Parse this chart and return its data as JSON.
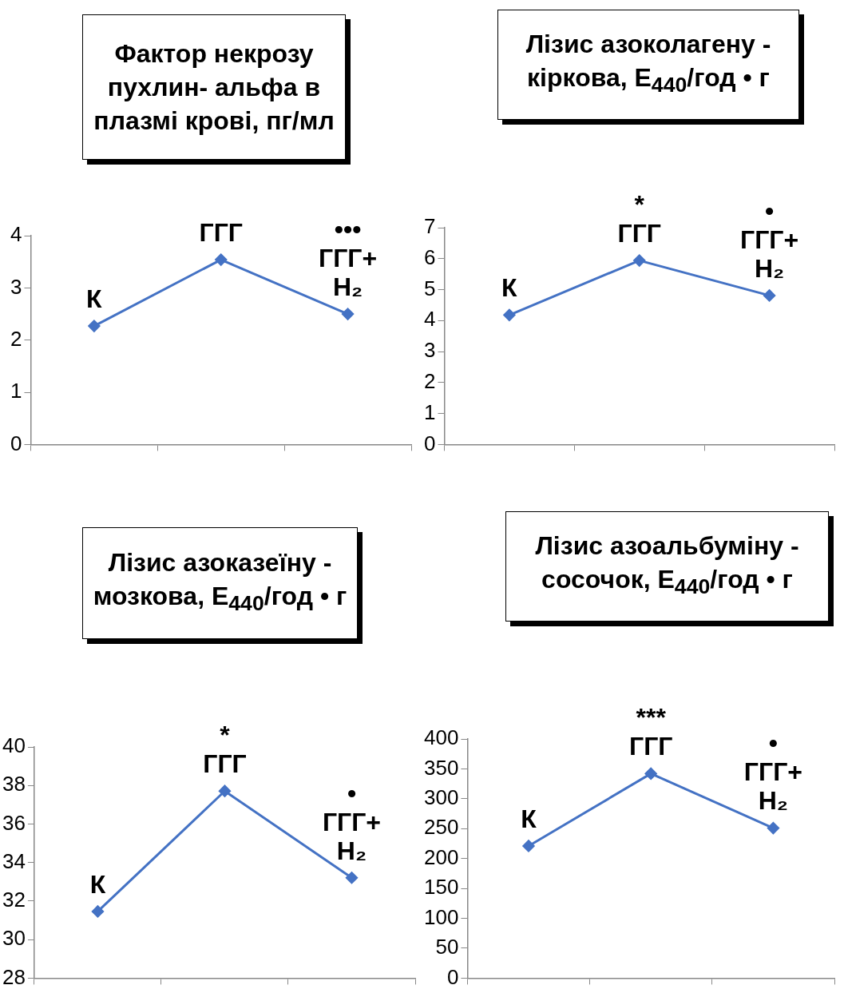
{
  "chart_data": [
    {
      "type": "line",
      "title": "Фактор некрозу пухлин- альфа в плазмі крові, пг/мл",
      "categories": [
        null,
        null,
        null
      ],
      "values": [
        2.27,
        3.54,
        2.5
      ],
      "color": "#4472c4",
      "marker": "diamond",
      "ylim": [
        0,
        4
      ],
      "yticks": [
        0,
        1,
        2,
        3,
        4
      ],
      "annotations": [
        {
          "text": "К",
          "y": 2.27
        },
        {
          "text": "ГГГ",
          "y": 3.54
        },
        {
          "text": "ГГГ+\nH₂",
          "y": 2.5
        },
        {
          "text": "•••",
          "y": 2.5
        }
      ]
    },
    {
      "type": "line",
      "title": "Лізис азоколагену - кіркова, E$_{440}$/год • г",
      "categories": [
        null,
        null,
        null
      ],
      "values": [
        4.18,
        5.94,
        4.81
      ],
      "color": "#4472c4",
      "marker": "diamond",
      "ylim": [
        0,
        7
      ],
      "yticks": [
        0,
        1,
        2,
        3,
        4,
        5,
        6,
        7
      ],
      "annotations": [
        {
          "text": "К",
          "y": 4.18
        },
        {
          "text": "ГГГ",
          "y": 5.94
        },
        {
          "text": "*",
          "y": 5.94
        },
        {
          "text": "ГГГ+\nH₂",
          "y": 4.81
        },
        {
          "text": "•",
          "y": 4.81
        }
      ]
    },
    {
      "type": "line",
      "title": "Лізис азоказеїну - мозкова, E$_{440}$/год • г",
      "categories": [
        null,
        null,
        null
      ],
      "values": [
        31.46,
        37.71,
        33.21
      ],
      "color": "#4472c4",
      "marker": "diamond",
      "ylim": [
        28,
        40
      ],
      "yticks": [
        28,
        30,
        32,
        34,
        36,
        38,
        40
      ],
      "annotations": [
        {
          "text": "К",
          "y": 31.46
        },
        {
          "text": "ГГГ",
          "y": 37.71
        },
        {
          "text": "*",
          "y": 37.71
        },
        {
          "text": "ГГГ+\nH₂",
          "y": 33.21
        },
        {
          "text": "•",
          "y": 33.21
        }
      ]
    },
    {
      "type": "line",
      "title": "Лізис азоальбуміну - сосочок, E$_{440}$/год • г",
      "categories": [
        null,
        null,
        null
      ],
      "values": [
        221,
        342,
        251
      ],
      "color": "#4472c4",
      "marker": "diamond",
      "ylim": [
        0,
        400
      ],
      "yticks": [
        0,
        50,
        100,
        150,
        200,
        250,
        300,
        350,
        400
      ],
      "annotations": [
        {
          "text": "К",
          "y": 221
        },
        {
          "text": "ГГГ",
          "y": 342
        },
        {
          "text": "***",
          "y": 342
        },
        {
          "text": "ГГГ+\nH₂",
          "y": 251
        },
        {
          "text": "•",
          "y": 251
        }
      ]
    }
  ]
}
